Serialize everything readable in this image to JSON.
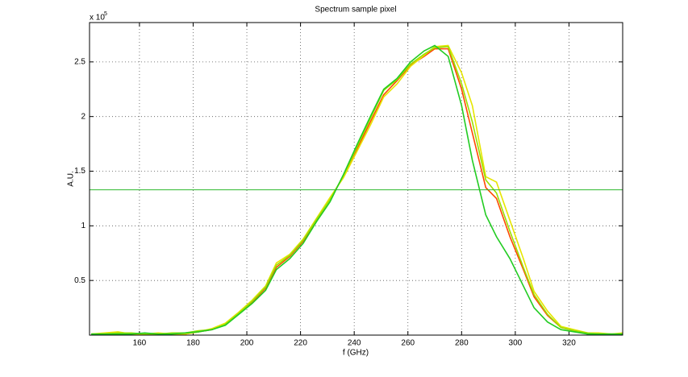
{
  "chart_data": {
    "type": "line",
    "title": "Spectrum sample pixel",
    "x_label": "f (GHz)",
    "y_label": "A.U.",
    "y_scale_label": "x 10",
    "y_scale_exponent": "5",
    "x": [
      142,
      147,
      152,
      157,
      162,
      167,
      172,
      177,
      182,
      187,
      192,
      197,
      202,
      207,
      211,
      216,
      221,
      226,
      231,
      236,
      241,
      246,
      251,
      256,
      261,
      266,
      270,
      275,
      280,
      284,
      289,
      293,
      298,
      303,
      307,
      312,
      317,
      322,
      327,
      331,
      336,
      340
    ],
    "series": [
      {
        "color": "#ff4a00",
        "values": [
          0.01,
          0.01,
          0.02,
          0.01,
          0.01,
          0.01,
          0.01,
          0.01,
          0.03,
          0.05,
          0.1,
          0.2,
          0.3,
          0.43,
          0.62,
          0.72,
          0.86,
          1.05,
          1.25,
          1.45,
          1.7,
          1.95,
          2.2,
          2.33,
          2.47,
          2.55,
          2.62,
          2.62,
          2.25,
          1.85,
          1.35,
          1.25,
          0.9,
          0.6,
          0.35,
          0.18,
          0.07,
          0.04,
          0.01,
          0.01,
          0.01,
          0.01
        ]
      },
      {
        "color": "#e6e600",
        "values": [
          0.01,
          0.02,
          0.03,
          0.01,
          0.01,
          0.02,
          0.01,
          0.01,
          0.03,
          0.06,
          0.11,
          0.21,
          0.32,
          0.45,
          0.66,
          0.74,
          0.88,
          1.07,
          1.26,
          1.44,
          1.68,
          1.92,
          2.18,
          2.3,
          2.46,
          2.56,
          2.64,
          2.65,
          2.4,
          2.1,
          1.45,
          1.4,
          1.05,
          0.7,
          0.4,
          0.22,
          0.08,
          0.05,
          0.02,
          0.02,
          0.01,
          0.02
        ]
      },
      {
        "color": "#9be000",
        "values": [
          0.01,
          0.01,
          0.02,
          0.02,
          0.01,
          0.01,
          0.02,
          0.02,
          0.04,
          0.05,
          0.1,
          0.2,
          0.31,
          0.44,
          0.64,
          0.73,
          0.87,
          1.06,
          1.24,
          1.46,
          1.72,
          1.98,
          2.24,
          2.34,
          2.48,
          2.57,
          2.63,
          2.64,
          2.3,
          1.95,
          1.42,
          1.3,
          0.95,
          0.62,
          0.37,
          0.19,
          0.07,
          0.04,
          0.02,
          0.01,
          0.01,
          0.01
        ]
      },
      {
        "color": "#22cc22",
        "values": [
          0.01,
          0.01,
          0.01,
          0.01,
          0.02,
          0.01,
          0.01,
          0.02,
          0.03,
          0.05,
          0.09,
          0.19,
          0.29,
          0.41,
          0.6,
          0.7,
          0.84,
          1.04,
          1.22,
          1.47,
          1.74,
          2.0,
          2.25,
          2.35,
          2.5,
          2.6,
          2.65,
          2.55,
          2.1,
          1.6,
          1.1,
          0.9,
          0.7,
          0.45,
          0.25,
          0.12,
          0.05,
          0.03,
          0.01,
          0.01,
          0.01,
          0.01
        ]
      }
    ],
    "reference_line": {
      "value": 1.33,
      "color": "#2db82d"
    },
    "xlim": [
      141.4,
      340
    ],
    "ylim": [
      0,
      2.86
    ],
    "xticks": [
      160,
      180,
      200,
      220,
      240,
      260,
      280,
      300,
      320
    ],
    "yticks": [
      0.5,
      1,
      1.5,
      2,
      2.5
    ],
    "grid": true
  }
}
